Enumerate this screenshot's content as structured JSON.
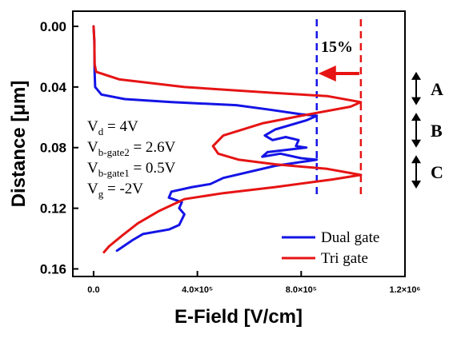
{
  "chart_data": {
    "type": "line",
    "xlabel": "E-Field [V/cm]",
    "ylabel": "Distance [μm]",
    "xlim": [
      -80000,
      1200000
    ],
    "ylim": [
      0.165,
      -0.01
    ],
    "x_ticks": [
      {
        "value": 0,
        "label": "0.0"
      },
      {
        "value": 400000,
        "label": "4.0×10⁵"
      },
      {
        "value": 800000,
        "label": "8.0×10⁵"
      },
      {
        "value": 1200000,
        "label": "1.2×10⁶"
      }
    ],
    "y_ticks": [
      {
        "value": 0.0,
        "label": "0.00"
      },
      {
        "value": 0.04,
        "label": "0.04"
      },
      {
        "value": 0.08,
        "label": "0.08"
      },
      {
        "value": 0.12,
        "label": "0.12"
      },
      {
        "value": 0.16,
        "label": "0.16"
      }
    ],
    "series": [
      {
        "name": "Dual gate",
        "color": "#1414e6",
        "points": [
          [
            0,
            0.0
          ],
          [
            3000,
            0.01
          ],
          [
            4000,
            0.03
          ],
          [
            6000,
            0.04
          ],
          [
            30000,
            0.045
          ],
          [
            120000,
            0.048
          ],
          [
            300000,
            0.05
          ],
          [
            550000,
            0.052
          ],
          [
            680000,
            0.055
          ],
          [
            800000,
            0.058
          ],
          [
            860000,
            0.059
          ],
          [
            820000,
            0.062
          ],
          [
            700000,
            0.068
          ],
          [
            660000,
            0.072
          ],
          [
            690000,
            0.075
          ],
          [
            740000,
            0.073
          ],
          [
            790000,
            0.075
          ],
          [
            780000,
            0.079
          ],
          [
            820000,
            0.08
          ],
          [
            670000,
            0.083
          ],
          [
            650000,
            0.086
          ],
          [
            720000,
            0.084
          ],
          [
            800000,
            0.087
          ],
          [
            860000,
            0.088
          ],
          [
            700000,
            0.092
          ],
          [
            500000,
            0.1
          ],
          [
            450000,
            0.104
          ],
          [
            380000,
            0.106
          ],
          [
            300000,
            0.109
          ],
          [
            290000,
            0.113
          ],
          [
            340000,
            0.116
          ],
          [
            330000,
            0.12
          ],
          [
            350000,
            0.124
          ],
          [
            330000,
            0.131
          ],
          [
            290000,
            0.134
          ],
          [
            190000,
            0.137
          ],
          [
            150000,
            0.141
          ],
          [
            90000,
            0.148
          ]
        ]
      },
      {
        "name": "Tri gate",
        "color": "#e61414",
        "points": [
          [
            0,
            0.0
          ],
          [
            3000,
            0.01
          ],
          [
            4000,
            0.025
          ],
          [
            10000,
            0.03
          ],
          [
            100000,
            0.035
          ],
          [
            350000,
            0.04
          ],
          [
            700000,
            0.044
          ],
          [
            900000,
            0.046
          ],
          [
            1030000,
            0.05
          ],
          [
            990000,
            0.053
          ],
          [
            800000,
            0.059
          ],
          [
            650000,
            0.064
          ],
          [
            500000,
            0.072
          ],
          [
            460000,
            0.079
          ],
          [
            480000,
            0.084
          ],
          [
            560000,
            0.088
          ],
          [
            700000,
            0.091
          ],
          [
            900000,
            0.094
          ],
          [
            1030000,
            0.098
          ],
          [
            920000,
            0.101
          ],
          [
            700000,
            0.106
          ],
          [
            500000,
            0.11
          ],
          [
            350000,
            0.114
          ],
          [
            250000,
            0.122
          ],
          [
            170000,
            0.13
          ],
          [
            110000,
            0.138
          ],
          [
            60000,
            0.145
          ],
          [
            40000,
            0.149
          ]
        ]
      }
    ],
    "reference_lines": [
      {
        "x": 860000,
        "color": "#1414e6"
      },
      {
        "x": 1030000,
        "color": "#e61414"
      }
    ],
    "annotations": {
      "percent": "15%",
      "regions": [
        {
          "label": "A",
          "y_from": 0.03,
          "y_to": 0.052
        },
        {
          "label": "B",
          "y_from": 0.057,
          "y_to": 0.08
        },
        {
          "label": "C",
          "y_from": 0.085,
          "y_to": 0.107
        }
      ],
      "conditions": [
        {
          "main": "V",
          "sub": "d",
          "rest": " =  4V"
        },
        {
          "main": "V",
          "sub": "b-gate2",
          "rest": " = 2.6V"
        },
        {
          "main": "V",
          "sub": "b-gate1",
          "rest": " = 0.5V"
        },
        {
          "main": "V",
          "sub": "g",
          "rest": " = -2V"
        }
      ]
    },
    "legend": {
      "position": "bottom-right",
      "entries": [
        "Dual gate",
        "Tri gate"
      ]
    },
    "grid": false
  }
}
